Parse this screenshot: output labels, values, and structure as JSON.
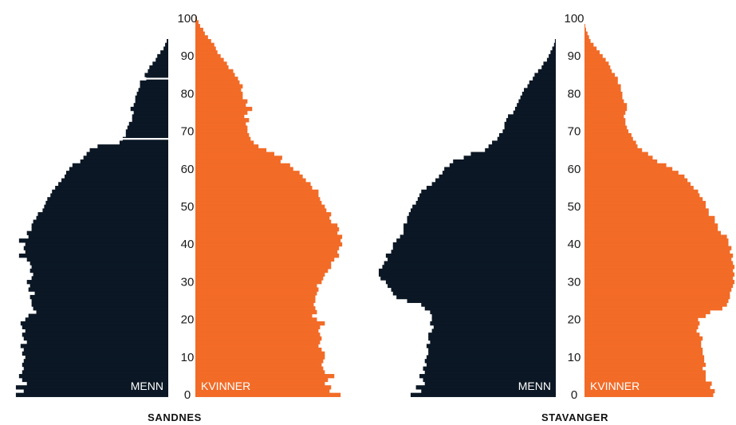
{
  "chart_data": [
    {
      "type": "bar",
      "orientation": "horizontal-population-pyramid",
      "title": "SANDNES",
      "left_label": "MENN",
      "right_label": "KVINNER",
      "y_ticks": [
        "0",
        "10",
        "20",
        "30",
        "40",
        "50",
        "60",
        "70",
        "80",
        "90",
        "100"
      ],
      "ylim": [
        0,
        100
      ],
      "xlim": [
        0,
        1
      ],
      "colors": {
        "menn": "#0b1724",
        "kvinner": "#f26b27"
      },
      "series": [
        {
          "name": "MENN",
          "values": [
            0.97,
            0.92,
            0.97,
            0.9,
            0.93,
            0.95,
            0.93,
            0.92,
            0.93,
            0.92,
            0.91,
            0.93,
            0.92,
            0.94,
            0.9,
            0.92,
            0.93,
            0.91,
            0.93,
            0.94,
            0.91,
            0.89,
            0.84,
            0.86,
            0.87,
            0.87,
            0.88,
            0.85,
            0.89,
            0.88,
            0.9,
            0.87,
            0.86,
            0.88,
            0.87,
            0.88,
            0.9,
            0.95,
            0.91,
            0.92,
            0.91,
            0.95,
            0.89,
            0.9,
            0.87,
            0.87,
            0.86,
            0.84,
            0.83,
            0.8,
            0.79,
            0.78,
            0.77,
            0.75,
            0.74,
            0.72,
            0.7,
            0.68,
            0.66,
            0.65,
            0.63,
            0.61,
            0.56,
            0.54,
            0.52,
            0.5,
            0.45,
            0.31,
            0.29,
            0.27,
            0.27,
            0.26,
            0.25,
            0.23,
            0.23,
            0.22,
            0.24,
            0.22,
            0.21,
            0.21,
            0.2,
            0.19,
            0.18,
            0.18,
            0.14,
            0.15,
            0.13,
            0.12,
            0.1,
            0.08,
            0.07,
            0.05,
            0.03,
            0.02,
            0.01,
            0.0,
            0.0,
            0.0,
            0.0,
            0.0,
            0.0
          ]
        },
        {
          "name": "KVINNER",
          "values": [
            0.92,
            0.85,
            0.86,
            0.82,
            0.84,
            0.88,
            0.82,
            0.81,
            0.8,
            0.81,
            0.82,
            0.82,
            0.8,
            0.78,
            0.79,
            0.8,
            0.79,
            0.78,
            0.79,
            0.82,
            0.77,
            0.74,
            0.77,
            0.76,
            0.75,
            0.76,
            0.76,
            0.77,
            0.78,
            0.77,
            0.8,
            0.81,
            0.82,
            0.84,
            0.86,
            0.86,
            0.88,
            0.91,
            0.9,
            0.91,
            0.93,
            0.92,
            0.93,
            0.9,
            0.91,
            0.9,
            0.86,
            0.85,
            0.86,
            0.83,
            0.82,
            0.8,
            0.79,
            0.78,
            0.78,
            0.74,
            0.73,
            0.7,
            0.68,
            0.66,
            0.62,
            0.6,
            0.54,
            0.55,
            0.5,
            0.45,
            0.4,
            0.37,
            0.35,
            0.34,
            0.33,
            0.33,
            0.32,
            0.34,
            0.31,
            0.33,
            0.36,
            0.32,
            0.33,
            0.3,
            0.3,
            0.29,
            0.3,
            0.28,
            0.27,
            0.25,
            0.24,
            0.21,
            0.2,
            0.18,
            0.16,
            0.14,
            0.13,
            0.12,
            0.1,
            0.08,
            0.06,
            0.05,
            0.03,
            0.02,
            0.01
          ]
        }
      ],
      "gaps": [
        68,
        84
      ]
    },
    {
      "type": "bar",
      "orientation": "horizontal-population-pyramid",
      "title": "STAVANGER",
      "left_label": "MENN",
      "right_label": "KVINNER",
      "y_ticks": [
        "0",
        "10",
        "20",
        "30",
        "40",
        "50",
        "60",
        "70",
        "80",
        "90",
        "100"
      ],
      "ylim": [
        0,
        100
      ],
      "xlim": [
        0,
        1
      ],
      "colors": {
        "menn": "#0b1724",
        "kvinner": "#f26b27"
      },
      "series": [
        {
          "name": "MENN",
          "values": [
            0.82,
            0.76,
            0.79,
            0.74,
            0.75,
            0.77,
            0.74,
            0.75,
            0.73,
            0.74,
            0.73,
            0.72,
            0.72,
            0.73,
            0.71,
            0.72,
            0.72,
            0.7,
            0.69,
            0.71,
            0.7,
            0.7,
            0.71,
            0.74,
            0.76,
            0.84,
            0.9,
            0.92,
            0.93,
            0.95,
            0.96,
            0.99,
            1.0,
            1.0,
            0.98,
            0.97,
            0.95,
            0.96,
            0.93,
            0.92,
            0.92,
            0.9,
            0.88,
            0.86,
            0.86,
            0.86,
            0.84,
            0.84,
            0.83,
            0.82,
            0.81,
            0.79,
            0.78,
            0.77,
            0.76,
            0.73,
            0.7,
            0.68,
            0.66,
            0.64,
            0.63,
            0.6,
            0.58,
            0.52,
            0.48,
            0.4,
            0.38,
            0.36,
            0.33,
            0.32,
            0.3,
            0.29,
            0.29,
            0.28,
            0.27,
            0.24,
            0.23,
            0.22,
            0.21,
            0.2,
            0.19,
            0.18,
            0.16,
            0.15,
            0.13,
            0.12,
            0.1,
            0.08,
            0.07,
            0.05,
            0.04,
            0.03,
            0.02,
            0.01,
            0.005,
            0.0,
            0.0,
            0.0,
            0.0,
            0.0,
            0.0
          ]
        },
        {
          "name": "KVINNER",
          "values": [
            0.85,
            0.86,
            0.83,
            0.84,
            0.8,
            0.8,
            0.8,
            0.78,
            0.8,
            0.79,
            0.79,
            0.78,
            0.78,
            0.77,
            0.77,
            0.78,
            0.76,
            0.74,
            0.75,
            0.76,
            0.75,
            0.8,
            0.83,
            0.91,
            0.94,
            0.95,
            0.96,
            0.96,
            0.97,
            0.98,
            0.99,
            0.98,
            0.99,
            0.98,
            0.99,
            0.98,
            0.97,
            0.98,
            0.96,
            0.97,
            0.95,
            0.95,
            0.94,
            0.9,
            0.88,
            0.88,
            0.86,
            0.86,
            0.82,
            0.82,
            0.8,
            0.8,
            0.78,
            0.76,
            0.75,
            0.72,
            0.7,
            0.68,
            0.66,
            0.62,
            0.58,
            0.54,
            0.48,
            0.45,
            0.42,
            0.38,
            0.35,
            0.34,
            0.32,
            0.31,
            0.29,
            0.28,
            0.27,
            0.27,
            0.26,
            0.27,
            0.28,
            0.28,
            0.26,
            0.25,
            0.25,
            0.24,
            0.24,
            0.22,
            0.22,
            0.2,
            0.18,
            0.17,
            0.16,
            0.14,
            0.12,
            0.1,
            0.08,
            0.06,
            0.04,
            0.03,
            0.02,
            0.01,
            0.005,
            0.0,
            0.0
          ]
        }
      ],
      "gaps": []
    }
  ]
}
